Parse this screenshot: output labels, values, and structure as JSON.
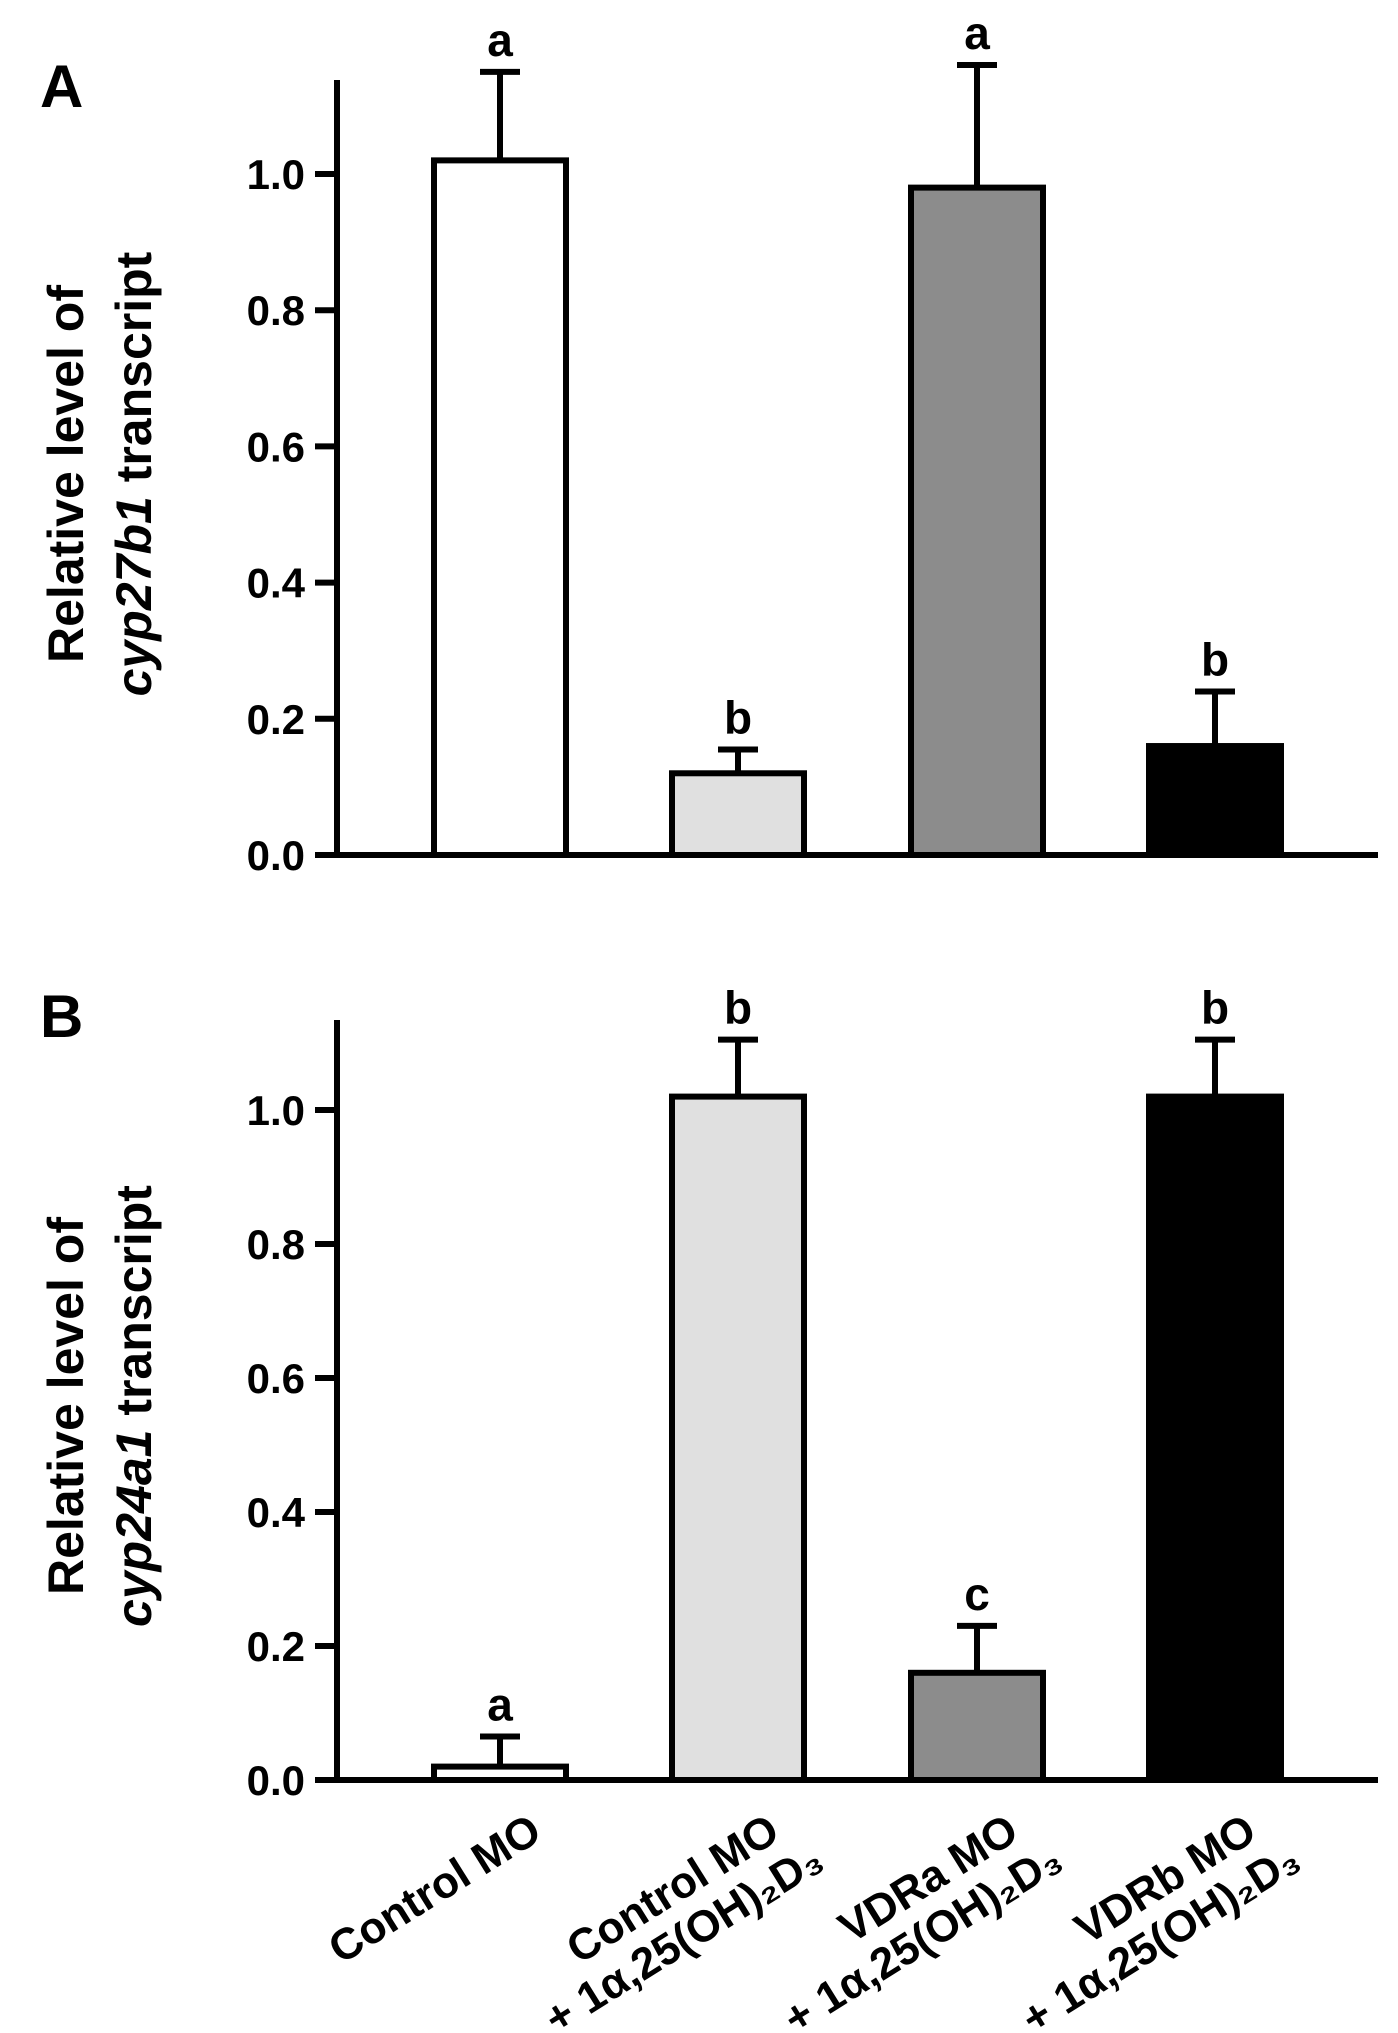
{
  "categories": [
    {
      "line1": "Control MO",
      "line2": ""
    },
    {
      "line1": "Control MO",
      "line2": "+ 1α,25(OH)₂D₃"
    },
    {
      "line1": "VDRa MO",
      "line2": "+ 1α,25(OH)₂D₃"
    },
    {
      "line1": "VDRb MO",
      "line2": "+ 1α,25(OH)₂D₃"
    }
  ],
  "chart_data": [
    {
      "type": "bar",
      "panel": "A",
      "ylabel_line1": "Relative level of",
      "ylabel_gene": "cyp27b1",
      "ylabel_suffix": " transcript",
      "categories": [
        "Control MO",
        "Control MO + 1α,25(OH)₂D₃",
        "VDRa MO + 1α,25(OH)₂D₃",
        "VDRb MO + 1α,25(OH)₂D₃"
      ],
      "values": [
        1.02,
        0.12,
        0.98,
        0.16
      ],
      "errors": [
        0.13,
        0.035,
        0.18,
        0.08
      ],
      "letters": [
        "a",
        "b",
        "a",
        "b"
      ],
      "colors": [
        "#ffffff",
        "#e0e0e0",
        "#8c8c8c",
        "#000000"
      ],
      "ylim": [
        0,
        1.13
      ],
      "yticks": [
        0.0,
        0.2,
        0.4,
        0.6,
        0.8,
        1.0
      ],
      "ytick_labels": [
        "0.0",
        "0.2",
        "0.4",
        "0.6",
        "0.8",
        "1.0"
      ]
    },
    {
      "type": "bar",
      "panel": "B",
      "ylabel_line1": "Relative level of",
      "ylabel_gene": "cyp24a1",
      "ylabel_suffix": " transcript",
      "categories": [
        "Control MO",
        "Control MO + 1α,25(OH)₂D₃",
        "VDRa MO + 1α,25(OH)₂D₃",
        "VDRb MO + 1α,25(OH)₂D₃"
      ],
      "values": [
        0.02,
        1.02,
        0.16,
        1.02
      ],
      "errors": [
        0.045,
        0.085,
        0.07,
        0.085
      ],
      "letters": [
        "a",
        "b",
        "c",
        "b"
      ],
      "colors": [
        "#ffffff",
        "#e0e0e0",
        "#8c8c8c",
        "#000000"
      ],
      "ylim": [
        0,
        1.13
      ],
      "yticks": [
        0.0,
        0.2,
        0.4,
        0.6,
        0.8,
        1.0
      ],
      "ytick_labels": [
        "0.0",
        "0.2",
        "0.4",
        "0.6",
        "0.8",
        "1.0"
      ]
    }
  ]
}
